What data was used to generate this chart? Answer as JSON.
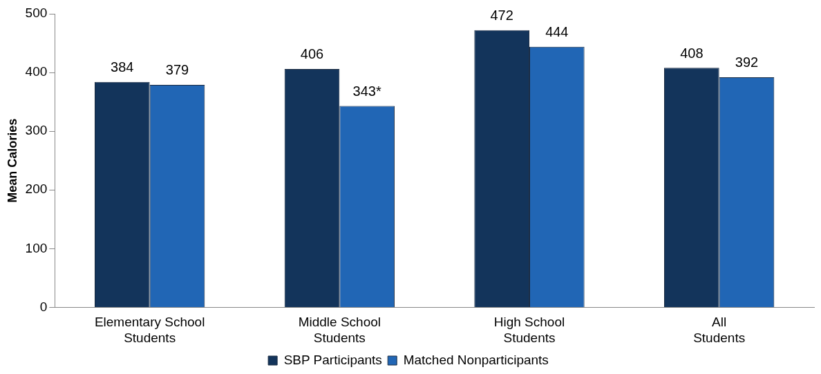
{
  "chart_data": {
    "type": "bar",
    "categories": [
      "Elementary School Students",
      "Middle School Students",
      "High School Students",
      "All Students"
    ],
    "ylabel": "Mean Calories",
    "series": [
      {
        "name": "SBP Participants",
        "color": "#13345b",
        "values": [
          384,
          406,
          472,
          408
        ],
        "value_labels": [
          "384",
          "406",
          "472",
          "408"
        ]
      },
      {
        "name": "Matched Nonparticipants",
        "color": "#2166b5",
        "values": [
          379,
          343,
          444,
          392
        ],
        "value_labels": [
          "379",
          "343*",
          "444",
          "392"
        ]
      }
    ],
    "ylim": [
      0,
      500
    ],
    "yticks": [
      0,
      100,
      200,
      300,
      400,
      500
    ],
    "grid": false,
    "legend": "bottom"
  }
}
